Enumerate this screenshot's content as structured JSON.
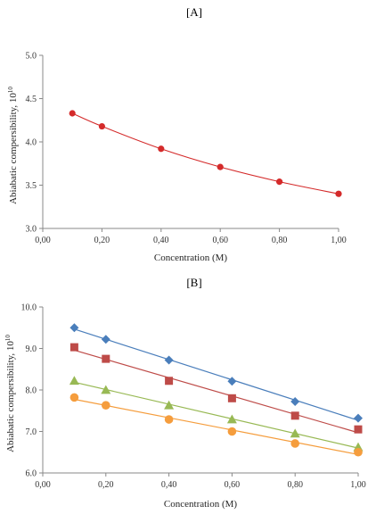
{
  "chart_data": [
    {
      "type": "scatter",
      "panel_label": "[A]",
      "xlabel": "Concentration (M)",
      "ylabel": "Abiabatic compersibility, 10",
      "ylabel_exp": "10",
      "xlim": [
        0.0,
        1.0
      ],
      "ylim": [
        3.0,
        5.0
      ],
      "x_ticks": [
        "0,00",
        "0,20",
        "0,40",
        "0,60",
        "0,80",
        "1,00"
      ],
      "x_tick_values": [
        0.0,
        0.2,
        0.4,
        0.6,
        0.8,
        1.0
      ],
      "y_ticks": [
        "3.0",
        "3.5",
        "4.0",
        "4.5",
        "5.0"
      ],
      "y_tick_values": [
        3.0,
        3.5,
        4.0,
        4.5,
        5.0
      ],
      "grid": false,
      "series": [
        {
          "color": "#d42a2a",
          "marker": "circle",
          "x": [
            0.1,
            0.2,
            0.4,
            0.6,
            0.8,
            1.0
          ],
          "y": [
            4.33,
            4.18,
            3.92,
            3.71,
            3.54,
            3.4
          ],
          "fit": "curve"
        }
      ]
    },
    {
      "type": "scatter",
      "panel_label": "[B]",
      "xlabel": "Concentration (M)",
      "ylabel": "Abiabatic compersibility, 10",
      "ylabel_exp": "10",
      "xlim": [
        0.0,
        1.0
      ],
      "ylim": [
        6.0,
        10.0
      ],
      "x_ticks": [
        "0,00",
        "0,20",
        "0,40",
        "0,60",
        "0,80",
        "1,00"
      ],
      "x_tick_values": [
        0.0,
        0.2,
        0.4,
        0.6,
        0.8,
        1.0
      ],
      "y_ticks": [
        "6.0",
        "7.0",
        "8.0",
        "9.0",
        "10.0"
      ],
      "y_tick_values": [
        6.0,
        7.0,
        8.0,
        9.0,
        10.0
      ],
      "grid": false,
      "series": [
        {
          "color": "#4a7ebb",
          "marker": "diamond",
          "x": [
            0.1,
            0.2,
            0.4,
            0.6,
            0.8,
            1.0
          ],
          "y": [
            9.5,
            9.22,
            8.72,
            8.21,
            7.72,
            7.32
          ],
          "fit": "linear"
        },
        {
          "color": "#be4b48",
          "marker": "square",
          "x": [
            0.1,
            0.2,
            0.4,
            0.6,
            0.8,
            1.0
          ],
          "y": [
            9.03,
            8.75,
            8.22,
            7.8,
            7.38,
            7.05
          ],
          "fit": "linear"
        },
        {
          "color": "#98b954",
          "marker": "triangle",
          "x": [
            0.1,
            0.2,
            0.4,
            0.6,
            0.8,
            1.0
          ],
          "y": [
            8.22,
            8.0,
            7.63,
            7.29,
            6.95,
            6.62
          ],
          "fit": "linear"
        },
        {
          "color": "#f59d3d",
          "marker": "circle",
          "x": [
            0.1,
            0.2,
            0.4,
            0.6,
            0.8,
            1.0
          ],
          "y": [
            7.82,
            7.63,
            7.29,
            7.0,
            6.71,
            6.5
          ],
          "fit": "linear"
        }
      ]
    }
  ]
}
